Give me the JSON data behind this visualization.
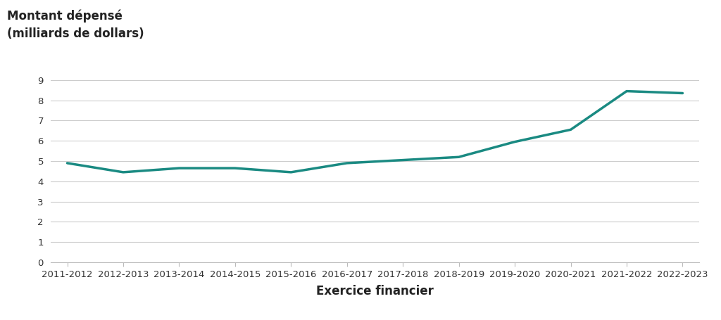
{
  "x_labels": [
    "2011-2012",
    "2012-2013",
    "2013-2014",
    "2014-2015",
    "2015-2016",
    "2016-2017",
    "2017-2018",
    "2018-2019",
    "2019-2020",
    "2020-2021",
    "2021-2022",
    "2022-2023"
  ],
  "y_values": [
    4.9,
    4.45,
    4.65,
    4.65,
    4.45,
    4.9,
    5.05,
    5.2,
    5.95,
    6.55,
    8.45,
    8.35
  ],
  "line_color": "#1a8a82",
  "line_width": 2.5,
  "ylabel_line1": "Montant dépensé",
  "ylabel_line2": "(milliards de dollars)",
  "xlabel": "Exercice financier",
  "ylim": [
    0,
    9
  ],
  "yticks": [
    0,
    1,
    2,
    3,
    4,
    5,
    6,
    7,
    8,
    9
  ],
  "background_color": "#ffffff",
  "grid_color": "#cccccc",
  "ylabel_fontsize": 12,
  "xlabel_fontsize": 12,
  "tick_fontsize": 9.5,
  "ylabel_fontweight": "bold",
  "xlabel_fontweight": "bold"
}
